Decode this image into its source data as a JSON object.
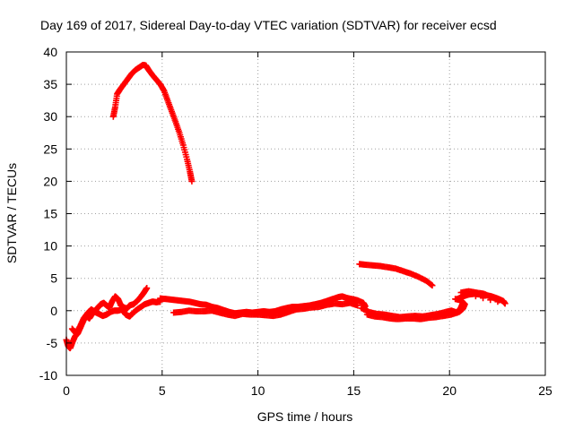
{
  "chart_data": {
    "type": "scatter",
    "title": "Day 169 of 2017, Sidereal Day-to-day VTEC variation (SDTVAR) for receiver ecsd",
    "xlabel": "GPS time / hours",
    "ylabel": "SDTVAR / TECUs",
    "xlim": [
      0,
      25
    ],
    "ylim": [
      -10,
      40
    ],
    "xticks": [
      "0",
      "5",
      "10",
      "15",
      "20",
      "25"
    ],
    "yticks": [
      "-10",
      "-5",
      "0",
      "5",
      "10",
      "15",
      "20",
      "25",
      "30",
      "35",
      "40"
    ],
    "grid": true,
    "marker": "plus",
    "series": [
      {
        "name": "arc-high",
        "color": "#ff0000",
        "points": [
          [
            2.45,
            30.0
          ],
          [
            2.55,
            31.5
          ],
          [
            2.65,
            33.5
          ],
          [
            2.8,
            34.2
          ],
          [
            3.0,
            35.0
          ],
          [
            3.2,
            35.8
          ],
          [
            3.4,
            36.6
          ],
          [
            3.6,
            37.2
          ],
          [
            3.8,
            37.6
          ],
          [
            4.0,
            38.0
          ],
          [
            4.15,
            37.9
          ],
          [
            4.3,
            37.2
          ],
          [
            4.5,
            36.4
          ],
          [
            4.7,
            35.7
          ],
          [
            4.9,
            35.0
          ],
          [
            5.1,
            34.0
          ],
          [
            5.3,
            32.4
          ],
          [
            5.5,
            30.8
          ],
          [
            5.7,
            29.2
          ],
          [
            5.9,
            27.5
          ],
          [
            6.1,
            25.6
          ],
          [
            6.3,
            23.4
          ],
          [
            6.45,
            21.5
          ],
          [
            6.55,
            20.0
          ]
        ]
      },
      {
        "name": "arc-mid",
        "color": "#ff0000",
        "points": [
          [
            15.3,
            7.2
          ],
          [
            15.6,
            7.1
          ],
          [
            16.0,
            7.0
          ],
          [
            16.4,
            6.9
          ],
          [
            16.8,
            6.7
          ],
          [
            17.2,
            6.5
          ],
          [
            17.6,
            6.1
          ],
          [
            18.0,
            5.7
          ],
          [
            18.4,
            5.2
          ],
          [
            18.8,
            4.6
          ],
          [
            19.1,
            3.9
          ]
        ]
      },
      {
        "name": "arc-low-a",
        "color": "#ff0000",
        "points": [
          [
            0.0,
            -4.5
          ],
          [
            0.1,
            -5.5
          ],
          [
            0.2,
            -5.8
          ],
          [
            0.3,
            -5.0
          ],
          [
            0.45,
            -4.0
          ],
          [
            0.6,
            -3.5
          ],
          [
            0.75,
            -2.5
          ],
          [
            0.9,
            -1.5
          ],
          [
            1.05,
            -0.8
          ],
          [
            1.2,
            -1.2
          ],
          [
            1.35,
            -0.5
          ],
          [
            1.5,
            0.0
          ],
          [
            1.65,
            0.5
          ],
          [
            1.8,
            1.0
          ],
          [
            1.95,
            1.2
          ],
          [
            2.1,
            0.8
          ],
          [
            2.25,
            0.5
          ],
          [
            2.4,
            1.5
          ],
          [
            2.55,
            2.2
          ],
          [
            2.7,
            1.8
          ],
          [
            2.85,
            0.8
          ],
          [
            3.0,
            0.5
          ],
          [
            3.15,
            0.3
          ],
          [
            3.3,
            0.8
          ],
          [
            3.5,
            1.0
          ],
          [
            3.7,
            1.5
          ],
          [
            3.9,
            2.2
          ],
          [
            4.05,
            2.8
          ],
          [
            4.2,
            3.5
          ]
        ]
      },
      {
        "name": "arc-low-b",
        "color": "#ff0000",
        "points": [
          [
            0.3,
            -2.8
          ],
          [
            0.5,
            -3.5
          ],
          [
            0.7,
            -2.5
          ],
          [
            0.9,
            -1.2
          ],
          [
            1.1,
            -0.4
          ],
          [
            1.3,
            0.2
          ],
          [
            1.5,
            -0.2
          ],
          [
            1.7,
            -0.5
          ],
          [
            1.9,
            -0.8
          ],
          [
            2.1,
            -0.6
          ],
          [
            2.3,
            -0.2
          ],
          [
            2.5,
            0.0
          ],
          [
            2.7,
            0.0
          ],
          [
            2.9,
            0.2
          ],
          [
            3.1,
            -0.6
          ],
          [
            3.3,
            -0.9
          ],
          [
            3.5,
            -0.3
          ],
          [
            3.7,
            0.2
          ],
          [
            3.9,
            0.6
          ],
          [
            4.1,
            1.0
          ],
          [
            4.3,
            1.2
          ],
          [
            4.5,
            1.4
          ],
          [
            4.7,
            1.3
          ],
          [
            4.9,
            1.4
          ]
        ]
      },
      {
        "name": "arc-low-c",
        "color": "#ff0000",
        "points": [
          [
            4.9,
            1.9
          ],
          [
            5.2,
            1.8
          ],
          [
            5.5,
            1.7
          ],
          [
            5.8,
            1.6
          ],
          [
            6.1,
            1.5
          ],
          [
            6.4,
            1.4
          ],
          [
            6.7,
            1.2
          ],
          [
            7.0,
            1.0
          ],
          [
            7.3,
            0.9
          ],
          [
            7.6,
            0.6
          ],
          [
            7.9,
            0.4
          ],
          [
            8.2,
            0.1
          ],
          [
            8.5,
            -0.2
          ],
          [
            8.8,
            -0.4
          ],
          [
            9.1,
            -0.3
          ],
          [
            9.4,
            -0.2
          ],
          [
            9.7,
            -0.3
          ],
          [
            10.0,
            -0.2
          ],
          [
            10.3,
            -0.1
          ],
          [
            10.6,
            -0.2
          ],
          [
            10.9,
            -0.1
          ],
          [
            11.2,
            0.2
          ],
          [
            11.5,
            0.4
          ],
          [
            11.8,
            0.6
          ],
          [
            12.1,
            0.6
          ],
          [
            12.4,
            0.7
          ],
          [
            12.7,
            0.8
          ],
          [
            13.0,
            1.0
          ],
          [
            13.3,
            1.2
          ],
          [
            13.6,
            1.5
          ],
          [
            13.9,
            1.8
          ],
          [
            14.2,
            2.1
          ],
          [
            14.4,
            2.2
          ],
          [
            14.6,
            2.0
          ],
          [
            14.9,
            1.8
          ],
          [
            15.2,
            1.6
          ],
          [
            15.5,
            1.2
          ],
          [
            15.6,
            0.7
          ],
          [
            15.5,
            0.3
          ]
        ]
      },
      {
        "name": "arc-low-d",
        "color": "#ff0000",
        "points": [
          [
            5.6,
            -0.3
          ],
          [
            6.0,
            -0.2
          ],
          [
            6.4,
            0.0
          ],
          [
            6.8,
            -0.1
          ],
          [
            7.2,
            -0.1
          ],
          [
            7.6,
            0.0
          ],
          [
            8.0,
            -0.3
          ],
          [
            8.4,
            -0.6
          ],
          [
            8.8,
            -0.8
          ],
          [
            9.2,
            -0.5
          ],
          [
            9.6,
            -0.6
          ],
          [
            10.0,
            -0.6
          ],
          [
            10.4,
            -0.7
          ],
          [
            10.8,
            -0.8
          ],
          [
            11.2,
            -0.6
          ],
          [
            11.6,
            -0.2
          ],
          [
            12.0,
            0.2
          ],
          [
            12.4,
            0.3
          ],
          [
            12.8,
            0.5
          ],
          [
            13.2,
            0.6
          ],
          [
            13.6,
            0.9
          ],
          [
            14.0,
            1.1
          ],
          [
            14.4,
            1.0
          ],
          [
            14.8,
            1.2
          ],
          [
            15.2,
            0.8
          ]
        ]
      },
      {
        "name": "arc-low-e",
        "color": "#ff0000",
        "points": [
          [
            15.4,
            0.4
          ],
          [
            15.8,
            -0.2
          ],
          [
            16.2,
            -0.5
          ],
          [
            16.6,
            -0.6
          ],
          [
            17.0,
            -0.8
          ],
          [
            17.4,
            -1.0
          ],
          [
            17.8,
            -0.9
          ],
          [
            18.2,
            -0.8
          ],
          [
            18.6,
            -0.9
          ],
          [
            19.0,
            -0.7
          ],
          [
            19.4,
            -0.5
          ],
          [
            19.8,
            -0.2
          ],
          [
            20.1,
            0.0
          ],
          [
            20.4,
            -0.3
          ],
          [
            20.6,
            0.5
          ],
          [
            20.7,
            1.2
          ]
        ]
      },
      {
        "name": "arc-low-f",
        "color": "#ff0000",
        "points": [
          [
            15.7,
            -0.6
          ],
          [
            16.1,
            -0.9
          ],
          [
            16.5,
            -1.0
          ],
          [
            16.9,
            -1.2
          ],
          [
            17.3,
            -1.3
          ],
          [
            17.7,
            -1.2
          ],
          [
            18.1,
            -1.2
          ],
          [
            18.5,
            -1.3
          ],
          [
            18.9,
            -1.1
          ],
          [
            19.3,
            -1.0
          ],
          [
            19.7,
            -0.8
          ],
          [
            20.1,
            -0.6
          ],
          [
            20.5,
            -0.2
          ],
          [
            20.7,
            0.3
          ],
          [
            20.8,
            1.0
          ],
          [
            20.6,
            1.6
          ],
          [
            20.3,
            1.8
          ]
        ]
      },
      {
        "name": "arc-low-g",
        "color": "#ff0000",
        "points": [
          [
            20.4,
            1.8
          ],
          [
            20.7,
            2.2
          ],
          [
            21.0,
            2.5
          ],
          [
            21.3,
            2.6
          ],
          [
            21.6,
            2.5
          ],
          [
            21.9,
            2.4
          ],
          [
            22.2,
            2.2
          ],
          [
            22.5,
            1.9
          ],
          [
            22.8,
            1.5
          ],
          [
            22.9,
            1.1
          ],
          [
            20.6,
            2.8
          ],
          [
            21.0,
            3.0
          ],
          [
            21.4,
            2.8
          ],
          [
            21.8,
            2.6
          ],
          [
            22.2,
            2.1
          ],
          [
            22.6,
            1.6
          ]
        ]
      }
    ]
  }
}
